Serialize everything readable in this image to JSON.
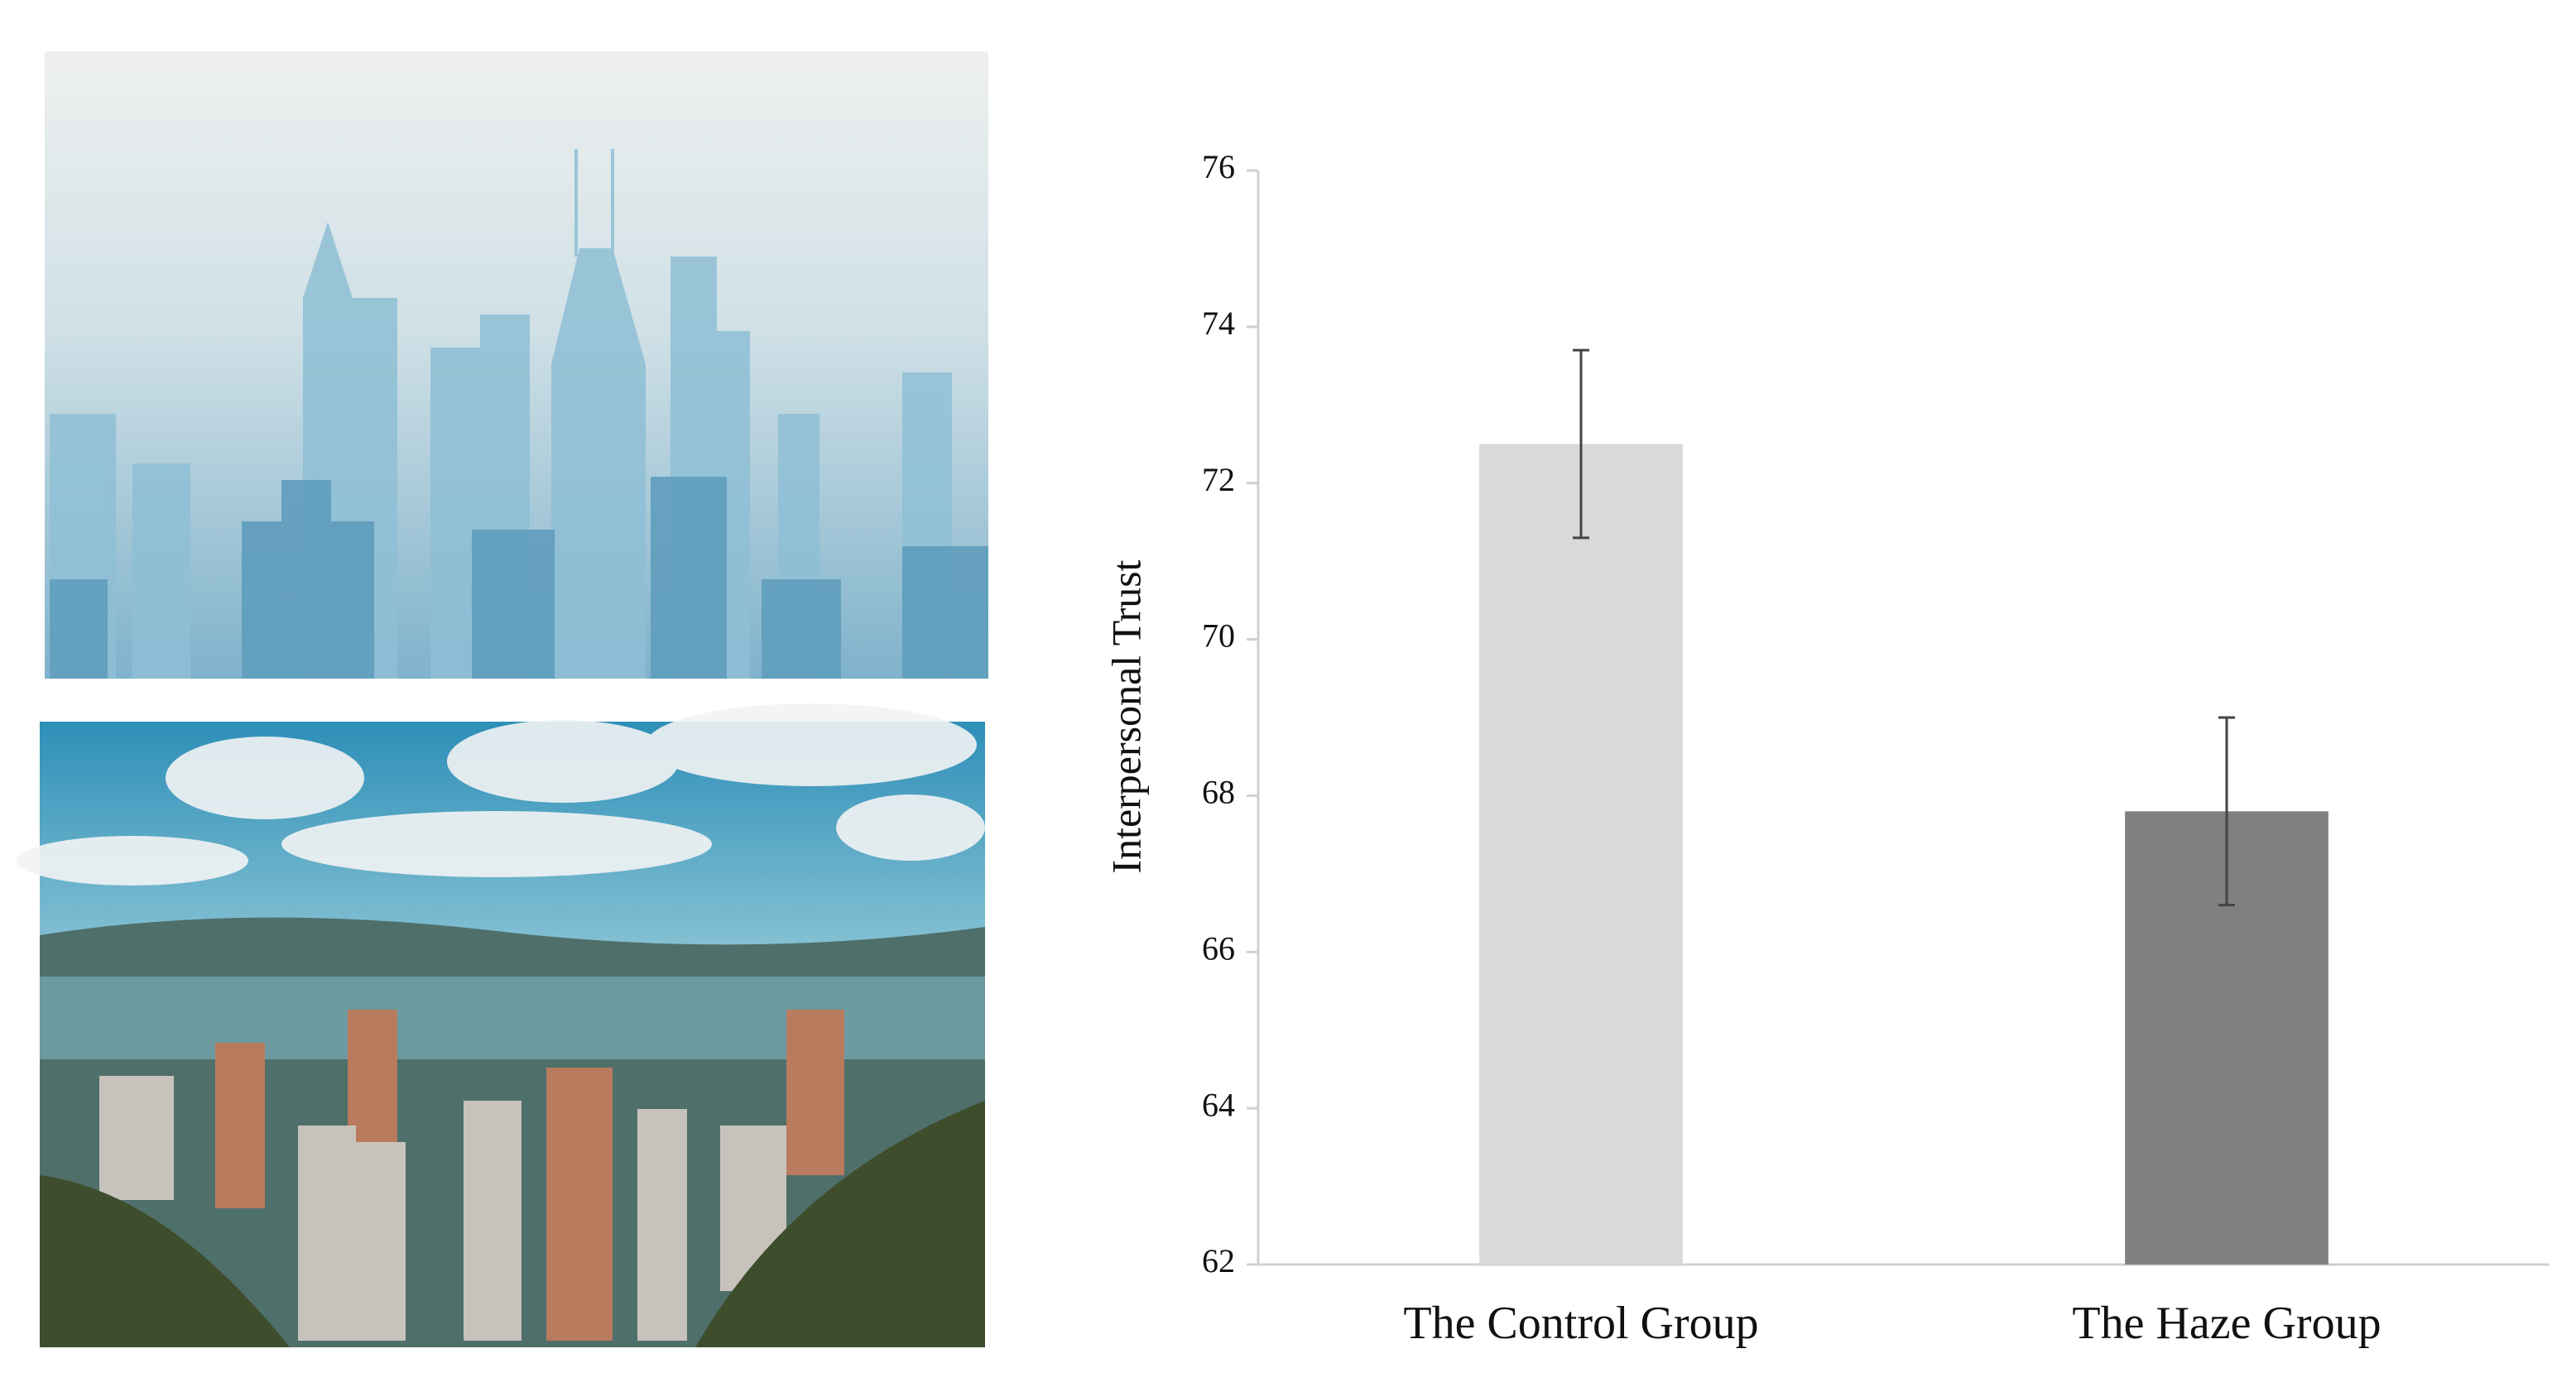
{
  "chart_data": {
    "type": "bar",
    "ylabel": "Interpersonal Trust",
    "categories": [
      "The Control Group",
      "The Haze Group"
    ],
    "values": [
      72.5,
      67.8
    ],
    "errors": [
      1.2,
      1.2
    ],
    "colors": [
      "#d9d9d9",
      "#808080"
    ],
    "ylim": [
      62,
      76
    ],
    "yticks": [
      62,
      64,
      66,
      68,
      70,
      72,
      74,
      76
    ],
    "grid": false
  }
}
